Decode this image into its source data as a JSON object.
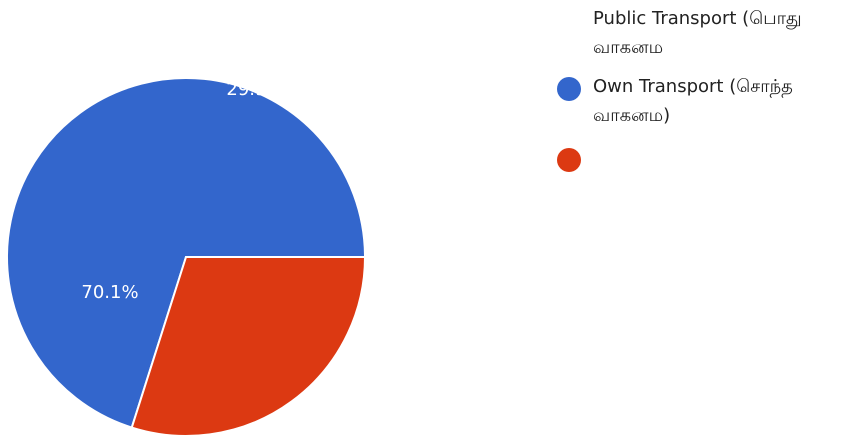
{
  "chart_data": {
    "type": "pie",
    "slices": [
      {
        "label": "Own Transport (சொந்த வாகனம)",
        "value": 70.1,
        "value_label": "70.1%",
        "color": "#3366cc"
      },
      {
        "label": "",
        "value": 29.9,
        "value_label": "29.9%",
        "color": "#dc3912"
      }
    ],
    "legend": {
      "position": "right",
      "entries": [
        {
          "text": "Public Transport (பொது\nவாகனம",
          "color": ""
        },
        {
          "text": "Own Transport (சொந்த\nவாகனம)",
          "color": "#3366cc"
        },
        {
          "text": "",
          "color": "#dc3912"
        }
      ]
    }
  }
}
